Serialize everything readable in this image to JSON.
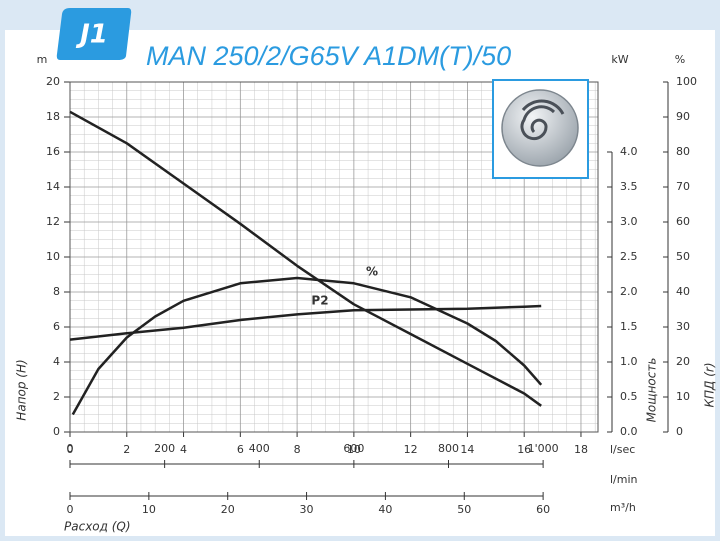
{
  "chart_data": {
    "type": "line",
    "badge": "J1",
    "title": "MAN 250/2/G65V A1DM(T)/50",
    "x_label": "Расход (Q)",
    "x_unit": "l/sec",
    "xlim": [
      0,
      18.6
    ],
    "xticks": [
      0,
      2,
      4,
      6,
      8,
      10,
      12,
      14,
      16,
      18
    ],
    "x_axes": [
      {
        "unit": "l/min",
        "xlim": [
          0,
          1116
        ],
        "xticks": [
          0,
          200,
          400,
          600,
          800,
          {
            "value": 1000,
            "label": "1'000"
          }
        ]
      },
      {
        "unit": "m³/h",
        "xlim": [
          0,
          66.96
        ],
        "xticks": [
          0,
          10,
          20,
          30,
          40,
          50,
          60
        ]
      }
    ],
    "y_unit": "m",
    "y_label": "Напор (H)",
    "ylim": [
      0,
      20
    ],
    "yticks": [
      0,
      2,
      4,
      6,
      8,
      10,
      12,
      14,
      16,
      18,
      20
    ],
    "y2_unit": "kW",
    "y2_label": "Мощность",
    "y2lim": [
      0,
      5
    ],
    "y2ticks": [
      {
        "value": 0,
        "label": "0.0"
      },
      0.5,
      {
        "value": 1,
        "label": "1.0"
      },
      1.5,
      {
        "value": 2,
        "label": "2.0"
      },
      2.5,
      {
        "value": 3,
        "label": "3.0"
      },
      3.5,
      {
        "value": 4,
        "label": "4.0"
      }
    ],
    "y3_unit": "%",
    "y3_label": "КПД (r)",
    "y3lim": [
      0,
      100
    ],
    "y3ticks": [
      0,
      10,
      20,
      30,
      40,
      50,
      60,
      70,
      80,
      90,
      100
    ],
    "grid": true,
    "series": [
      {
        "color": "#222222",
        "x": [
          0,
          2,
          4,
          6,
          8,
          10,
          12,
          14,
          16,
          16.6
        ],
        "values": [
          18.3,
          16.5,
          14.2,
          11.9,
          9.5,
          7.3,
          5.6,
          3.9,
          2.2,
          1.5
        ]
      },
      {
        "name": "%",
        "axis": "y3",
        "color": "#222222",
        "x": [
          0.1,
          1,
          2,
          3,
          4,
          6,
          8,
          10,
          12,
          14,
          15,
          16,
          16.6
        ],
        "values": [
          5,
          18,
          27,
          33,
          37.5,
          42.5,
          44,
          42.5,
          38.5,
          31,
          26,
          19,
          13.5
        ]
      },
      {
        "name": "P2",
        "axis": "y2",
        "color": "#222222",
        "x": [
          0,
          2,
          4,
          6,
          8,
          10,
          12,
          14,
          16,
          16.6
        ],
        "values": [
          1.32,
          1.41,
          1.49,
          1.6,
          1.68,
          1.74,
          1.75,
          1.76,
          1.79,
          1.8
        ]
      }
    ]
  }
}
